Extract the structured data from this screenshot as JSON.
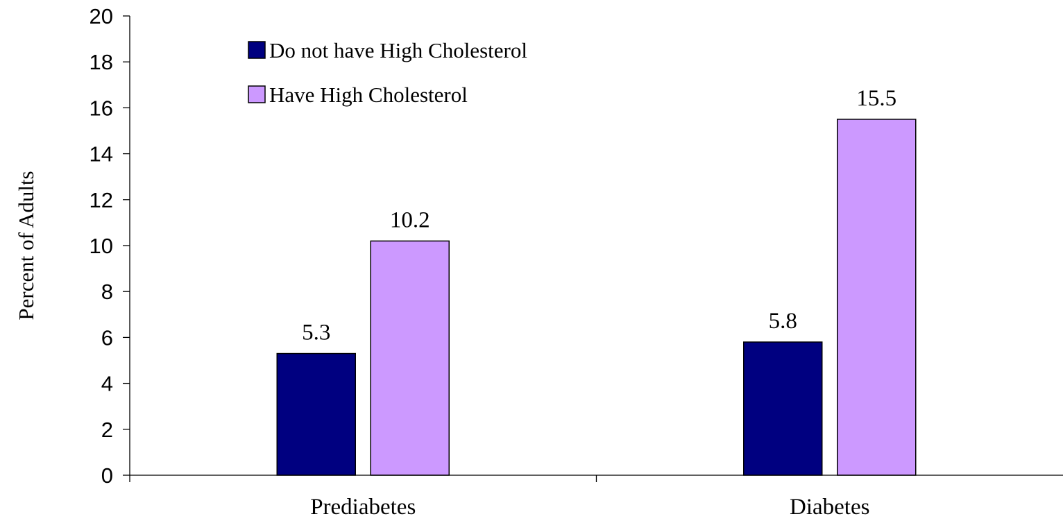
{
  "chart_data": {
    "type": "bar",
    "title": "",
    "xlabel": "",
    "ylabel": "Percent of Adults",
    "categories": [
      "Prediabetes",
      "Diabetes"
    ],
    "ylim": [
      0,
      20
    ],
    "yticks": [
      0,
      2,
      4,
      6,
      8,
      10,
      12,
      14,
      16,
      18,
      20
    ],
    "grid": false,
    "legend_position": "top-left",
    "series": [
      {
        "name": "Do not have High Cholesterol",
        "values": [
          5.3,
          5.8
        ],
        "labels": [
          "5.3",
          "5.8"
        ],
        "color": "#000080"
      },
      {
        "name": "Have High Cholesterol",
        "values": [
          10.2,
          15.5
        ],
        "labels": [
          "10.2",
          "15.5"
        ],
        "color": "#CC99FF"
      }
    ]
  }
}
